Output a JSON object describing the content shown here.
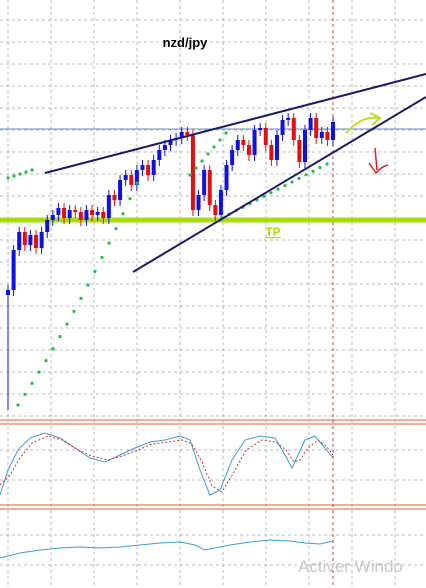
{
  "header": {
    "title": "nzd/jpy"
  },
  "annotations": {
    "tp": "TP"
  },
  "watermark": "Activer Windo"
}
